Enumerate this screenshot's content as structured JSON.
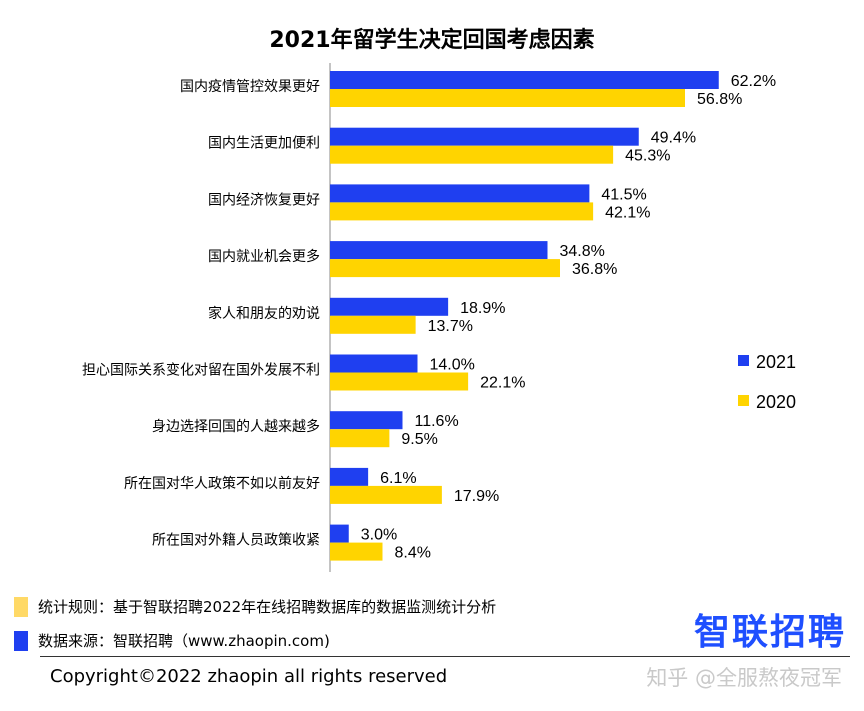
{
  "chart_data": {
    "type": "bar",
    "orientation": "horizontal",
    "title": "2021年留学生决定回国考虑因素",
    "categories": [
      "国内疫情管控效果更好",
      "国内生活更加便利",
      "国内经济恢复更好",
      "国内就业机会更多",
      "家人和朋友的劝说",
      "担心国际关系变化对留在国外发展不利",
      "身边选择回国的人越来越多",
      "所在国对华人政策不如以前友好",
      "所在国对外籍人员政策收紧"
    ],
    "series": [
      {
        "name": "2021",
        "color": "#1f3ff0",
        "values": [
          62.2,
          49.4,
          41.5,
          34.8,
          18.9,
          14.0,
          11.6,
          6.1,
          3.0
        ],
        "labels": [
          "62.2%",
          "49.4%",
          "41.5%",
          "34.8%",
          "18.9%",
          "14.0%",
          "11.6%",
          "6.1%",
          "3.0%"
        ]
      },
      {
        "name": "2020",
        "color": "#ffd400",
        "values": [
          56.8,
          45.3,
          42.1,
          36.8,
          13.7,
          22.1,
          9.5,
          17.9,
          8.4
        ],
        "labels": [
          "56.8%",
          "45.3%",
          "42.1%",
          "36.8%",
          "13.7%",
          "22.1%",
          "9.5%",
          "17.9%",
          "8.4%"
        ]
      }
    ],
    "xlim": [
      0,
      70
    ],
    "legend_position": "right",
    "grid": false
  },
  "notes": {
    "rule": "统计规则：基于智联招聘2022年在线招聘数据库的数据监测统计分析",
    "source": "数据来源：智联招聘（www.zhaopin.com)",
    "rule_color": "#ffd966",
    "source_color": "#1f3ff0"
  },
  "brand": "智联招聘",
  "copyright": "Copyright©2022 zhaopin all rights reserved",
  "watermark": "知乎 @全服熬夜冠军"
}
